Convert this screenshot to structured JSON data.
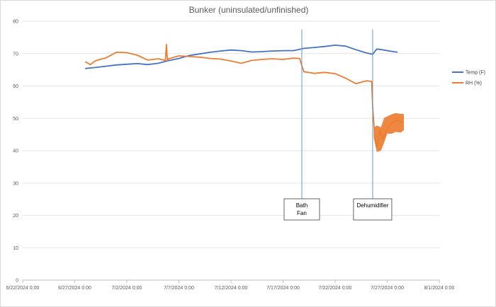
{
  "chart_data": {
    "type": "line",
    "title": "Bunker (uninsulated/unfinished)",
    "x_tick_labels": [
      "6/22/2024 0:00",
      "6/27/2024 0:00",
      "7/2/2024 0:00",
      "7/7/2024 0:00",
      "7/12/2024 0:00",
      "7/17/2024 0:00",
      "7/22/2024 0:00",
      "7/27/2024 0:00",
      "8/1/2024 0:00"
    ],
    "x_range": [
      "2024-06-22",
      "2024-08-01"
    ],
    "y_tick_labels": [
      "0",
      "10",
      "20",
      "30",
      "40",
      "50",
      "60",
      "70",
      "80"
    ],
    "ylim": [
      0,
      80
    ],
    "grid": "horizontal",
    "legend_position": "right",
    "series": [
      {
        "name": "Temp (F)",
        "color": "#4472C4",
        "points": [
          [
            "2024-06-28",
            65.4
          ],
          [
            "2024-06-29",
            65.7
          ],
          [
            "2024-06-30",
            66.1
          ],
          [
            "2024-07-01",
            66.5
          ],
          [
            "2024-07-02",
            66.7
          ],
          [
            "2024-07-03",
            66.9
          ],
          [
            "2024-07-04",
            66.6
          ],
          [
            "2024-07-05",
            67.0
          ],
          [
            "2024-07-06",
            67.8
          ],
          [
            "2024-07-07",
            68.5
          ],
          [
            "2024-07-08",
            69.4
          ],
          [
            "2024-07-09",
            69.9
          ],
          [
            "2024-07-10",
            70.4
          ],
          [
            "2024-07-11",
            70.8
          ],
          [
            "2024-07-12",
            71.1
          ],
          [
            "2024-07-13",
            70.9
          ],
          [
            "2024-07-14",
            70.5
          ],
          [
            "2024-07-15",
            70.6
          ],
          [
            "2024-07-16",
            70.8
          ],
          [
            "2024-07-17",
            70.9
          ],
          [
            "2024-07-18",
            70.9
          ],
          [
            "2024-07-19",
            71.6
          ],
          [
            "2024-07-20",
            71.9
          ],
          [
            "2024-07-21",
            72.2
          ],
          [
            "2024-07-22",
            72.6
          ],
          [
            "2024-07-23",
            72.3
          ],
          [
            "2024-07-24",
            71.2
          ],
          [
            "2024-07-25",
            70.2
          ],
          [
            "2024-07-25.6",
            69.8
          ],
          [
            "2024-07-26",
            71.4
          ],
          [
            "2024-07-26.5",
            71.2
          ],
          [
            "2024-07-27",
            70.9
          ],
          [
            "2024-07-28",
            70.4
          ]
        ]
      },
      {
        "name": "RH (%)",
        "color": "#ED7D31",
        "points": [
          [
            "2024-06-28",
            67.5
          ],
          [
            "2024-06-28.5",
            66.6
          ],
          [
            "2024-06-29",
            67.8
          ],
          [
            "2024-06-30",
            68.7
          ],
          [
            "2024-07-01",
            70.4
          ],
          [
            "2024-07-02",
            70.3
          ],
          [
            "2024-07-03",
            69.5
          ],
          [
            "2024-07-04",
            68.0
          ],
          [
            "2024-07-05",
            68.4
          ],
          [
            "2024-07-05.7",
            67.9
          ],
          [
            "2024-07-05.8",
            72.8
          ],
          [
            "2024-07-05.9",
            67.8
          ],
          [
            "2024-07-06",
            68.4
          ],
          [
            "2024-07-07",
            69.3
          ],
          [
            "2024-07-08",
            69.1
          ],
          [
            "2024-07-09",
            68.9
          ],
          [
            "2024-07-10",
            68.5
          ],
          [
            "2024-07-11",
            68.3
          ],
          [
            "2024-07-12",
            67.7
          ],
          [
            "2024-07-13",
            67.0
          ],
          [
            "2024-07-14",
            67.9
          ],
          [
            "2024-07-15",
            68.2
          ],
          [
            "2024-07-16",
            68.4
          ],
          [
            "2024-07-17",
            68.2
          ],
          [
            "2024-07-18",
            68.6
          ],
          [
            "2024-07-18.6",
            68.5
          ],
          [
            "2024-07-18.8",
            66.2
          ],
          [
            "2024-07-19",
            64.4
          ],
          [
            "2024-07-20",
            63.9
          ],
          [
            "2024-07-21",
            64.2
          ],
          [
            "2024-07-22",
            63.8
          ],
          [
            "2024-07-23",
            62.4
          ],
          [
            "2024-07-24",
            60.7
          ],
          [
            "2024-07-25",
            61.6
          ],
          [
            "2024-07-25.5",
            61.4
          ],
          [
            "2024-07-25.6",
            53.8
          ],
          [
            "2024-07-25.8",
            44.5
          ],
          [
            "2024-07-26",
            41.0
          ],
          [
            "2024-07-26.3",
            46.2
          ],
          [
            "2024-07-26.6",
            43.5
          ],
          [
            "2024-07-27",
            47.0
          ],
          [
            "2024-07-27.5",
            48.8
          ],
          [
            "2024-07-28",
            49.5
          ],
          [
            "2024-07-28.5",
            48.5
          ]
        ],
        "band": [
          [
            "2024-07-25.7",
            44,
            47
          ],
          [
            "2024-07-26",
            39.6,
            47.8
          ],
          [
            "2024-07-26.4",
            40,
            47.2
          ],
          [
            "2024-07-26.7",
            42.5,
            50.1
          ],
          [
            "2024-07-27",
            45.3,
            50.6
          ],
          [
            "2024-07-27.4",
            45.2,
            51.2
          ],
          [
            "2024-07-27.8",
            45.8,
            51.6
          ],
          [
            "2024-07-28.3",
            45.6,
            51.4
          ],
          [
            "2024-07-28.6",
            46.4,
            51.3
          ]
        ]
      }
    ],
    "annotations": [
      {
        "label_lines": [
          "Bath",
          "Fan"
        ],
        "x": "2024-07-18.8"
      },
      {
        "label_lines": [
          "Dehumidifier"
        ],
        "x": "2024-07-25.6"
      }
    ]
  }
}
